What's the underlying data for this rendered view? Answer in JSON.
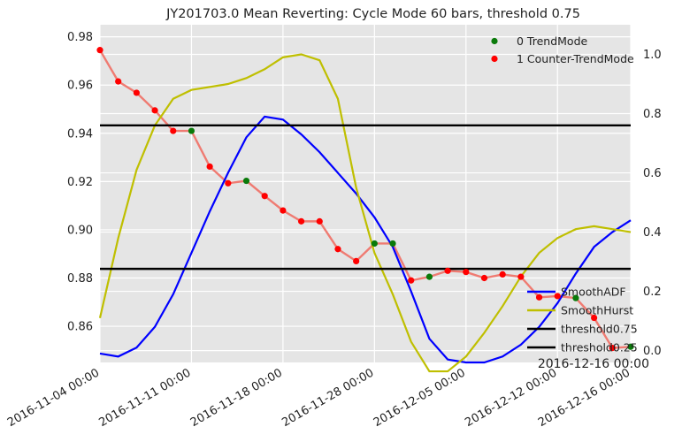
{
  "colors": {
    "background": "#e5e5e5",
    "grid": "#ffffff",
    "price_line": "#ef7b72",
    "trend_marker": "#0a7a0a",
    "counter_marker": "#ff0000",
    "smooth_adf": "#0000ff",
    "smooth_hurst": "#bfbf00",
    "threshold": "#000000"
  },
  "chart_data": {
    "type": "line",
    "title": "JY201703.0 Mean Reverting: Cycle Mode 60 bars, threshold 0.75",
    "corner_label": "2016-12-16 00:00",
    "grid": true,
    "legend_placement": "top-right / bottom-right",
    "x_tick_labels": [
      "2016-11-04 00:00",
      "2016-11-11 00:00",
      "2016-11-18 00:00",
      "2016-11-28 00:00",
      "2016-12-05 00:00",
      "2016-12-12 00:00",
      "2016-12-16 00:00"
    ],
    "x_tick_index": [
      0,
      5,
      10,
      15,
      20,
      25,
      29
    ],
    "n_points": 30,
    "left_axis": {
      "ylim": [
        0.845,
        0.985
      ],
      "ticks": [
        0.86,
        0.88,
        0.9,
        0.92,
        0.94,
        0.96,
        0.98
      ],
      "tick_labels": [
        "0.86",
        "0.88",
        "0.90",
        "0.92",
        "0.94",
        "0.96",
        "0.98"
      ]
    },
    "right_axis": {
      "ylim": [
        -0.04,
        1.1
      ],
      "ticks": [
        0.0,
        0.2,
        0.4,
        0.6,
        0.8,
        1.0
      ],
      "tick_labels": [
        "0.0",
        "0.2",
        "0.4",
        "0.6",
        "0.8",
        "1.0"
      ]
    },
    "price": {
      "values": [
        0.9745,
        0.9615,
        0.9568,
        0.9495,
        0.941,
        0.941,
        0.9262,
        0.9193,
        0.9203,
        0.914,
        0.908,
        0.9035,
        0.9035,
        0.892,
        0.887,
        0.8943,
        0.8943,
        0.879,
        0.8805,
        0.883,
        0.8825,
        0.88,
        0.8815,
        0.8805,
        0.872,
        0.8725,
        0.8717,
        0.8635,
        0.851,
        0.8515
      ],
      "mode": [
        1,
        1,
        1,
        1,
        1,
        0,
        1,
        1,
        0,
        1,
        1,
        1,
        1,
        1,
        1,
        0,
        0,
        1,
        0,
        1,
        1,
        1,
        1,
        1,
        1,
        1,
        0,
        1,
        1,
        0
      ]
    },
    "series": [
      {
        "name": "SmoothADF",
        "axis": "right",
        "values": [
          -0.01,
          -0.02,
          0.01,
          0.08,
          0.19,
          0.33,
          0.47,
          0.6,
          0.72,
          0.79,
          0.78,
          0.73,
          0.67,
          0.6,
          0.53,
          0.45,
          0.35,
          0.2,
          0.04,
          -0.03,
          -0.04,
          -0.04,
          -0.02,
          0.02,
          0.08,
          0.16,
          0.26,
          0.35,
          0.4,
          0.44
        ]
      },
      {
        "name": "SmoothHurst",
        "axis": "right",
        "values": [
          0.11,
          0.38,
          0.61,
          0.76,
          0.85,
          0.88,
          0.89,
          0.9,
          0.92,
          0.95,
          0.99,
          1.0,
          0.98,
          0.85,
          0.55,
          0.33,
          0.19,
          0.03,
          -0.07,
          -0.07,
          -0.02,
          0.06,
          0.15,
          0.25,
          0.33,
          0.38,
          0.41,
          0.42,
          0.41,
          0.4
        ]
      },
      {
        "name": "threshold0.75",
        "axis": "left",
        "value": 0.9433
      },
      {
        "name": "threshold0.25",
        "axis": "left",
        "value": 0.8838
      }
    ],
    "legend_top": [
      {
        "label": "0 TrendMode",
        "marker": "trend"
      },
      {
        "label": "1 Counter-TrendMode",
        "marker": "counter"
      }
    ],
    "legend_bottom": [
      {
        "label": "SmoothADF",
        "series": "smooth_adf"
      },
      {
        "label": "SmoothHurst",
        "series": "smooth_hurst"
      },
      {
        "label": "threshold0.75",
        "series": "threshold"
      },
      {
        "label": "threshold0.25",
        "series": "threshold"
      }
    ]
  }
}
